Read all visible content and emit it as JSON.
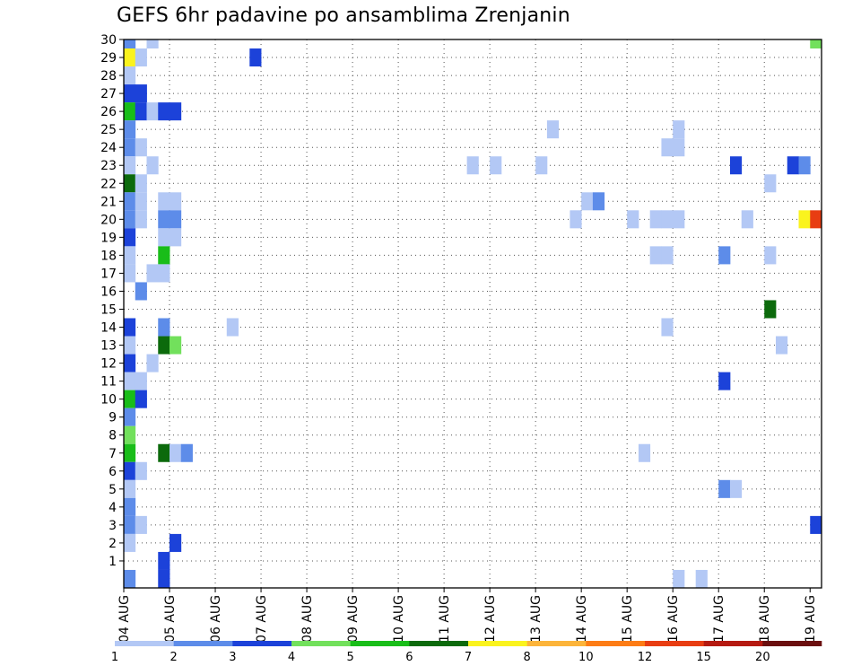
{
  "chart_data": {
    "type": "heatmap",
    "title": "GEFS 6hr padavine po ansamblima Zrenjanin",
    "x_ticks": [
      "04 AUG",
      "05 AUG",
      "06 AUG",
      "07 AUG",
      "08 AUG",
      "09 AUG",
      "10 AUG",
      "11 AUG",
      "12 AUG",
      "13 AUG",
      "14 AUG",
      "15 AUG",
      "16 AUG",
      "17 AUG",
      "18 AUG",
      "19 AUG"
    ],
    "y_ticks": [
      "1",
      "2",
      "3",
      "4",
      "5",
      "6",
      "7",
      "8",
      "9",
      "10",
      "11",
      "12",
      "13",
      "14",
      "15",
      "16",
      "17",
      "18",
      "19",
      "20",
      "21",
      "22",
      "23",
      "24",
      "25",
      "26",
      "27",
      "28",
      "29",
      "30"
    ],
    "grid": true,
    "colorbar": {
      "labels": [
        "1",
        "2",
        "3",
        "4",
        "5",
        "6",
        "7",
        "8",
        "10",
        "12",
        "15",
        "20"
      ],
      "colors": [
        "#b3c8f5",
        "#5d8ce9",
        "#1c42d9",
        "#72e05c",
        "#19bd19",
        "#0c6a0c",
        "#faf31e",
        "#fcb43a",
        "#fd7c15",
        "#e83d12",
        "#b51a11",
        "#6b0f0f"
      ]
    },
    "series": [
      {
        "member": 30,
        "cells": [
          [
            0,
            2
          ],
          [
            2,
            1
          ],
          [
            60,
            4
          ]
        ]
      },
      {
        "member": 29,
        "cells": [
          [
            0,
            7
          ],
          [
            1,
            1
          ],
          [
            11,
            3
          ]
        ]
      },
      {
        "member": 28,
        "cells": [
          [
            0,
            1
          ]
        ]
      },
      {
        "member": 27,
        "cells": [
          [
            0,
            3
          ],
          [
            1,
            3
          ]
        ]
      },
      {
        "member": 26,
        "cells": [
          [
            0,
            5
          ],
          [
            1,
            3
          ],
          [
            2,
            1
          ],
          [
            3,
            3
          ],
          [
            4,
            3
          ]
        ]
      },
      {
        "member": 25,
        "cells": [
          [
            0,
            2
          ],
          [
            37,
            1
          ],
          [
            48,
            1
          ]
        ]
      },
      {
        "member": 24,
        "cells": [
          [
            0,
            2
          ],
          [
            1,
            1
          ],
          [
            47,
            1
          ],
          [
            48,
            1
          ]
        ]
      },
      {
        "member": 23,
        "cells": [
          [
            0,
            1
          ],
          [
            2,
            1
          ],
          [
            30,
            1
          ],
          [
            32,
            1
          ],
          [
            36,
            1
          ],
          [
            53,
            3
          ],
          [
            58,
            3
          ],
          [
            59,
            2
          ]
        ]
      },
      {
        "member": 22,
        "cells": [
          [
            0,
            6
          ],
          [
            1,
            1
          ],
          [
            56,
            1
          ]
        ]
      },
      {
        "member": 21,
        "cells": [
          [
            0,
            2
          ],
          [
            1,
            1
          ],
          [
            3,
            1
          ],
          [
            4,
            1
          ],
          [
            40,
            1
          ],
          [
            41,
            2
          ]
        ]
      },
      {
        "member": 20,
        "cells": [
          [
            0,
            2
          ],
          [
            1,
            1
          ],
          [
            3,
            2
          ],
          [
            4,
            2
          ],
          [
            39,
            1
          ],
          [
            44,
            1
          ],
          [
            46,
            1
          ],
          [
            47,
            1
          ],
          [
            48,
            1
          ],
          [
            54,
            1
          ],
          [
            59,
            7
          ],
          [
            60,
            10
          ]
        ]
      },
      {
        "member": 19,
        "cells": [
          [
            0,
            3
          ],
          [
            3,
            1
          ],
          [
            4,
            1
          ]
        ]
      },
      {
        "member": 18,
        "cells": [
          [
            0,
            1
          ],
          [
            3,
            5
          ],
          [
            46,
            1
          ],
          [
            47,
            1
          ],
          [
            52,
            2
          ],
          [
            56,
            1
          ]
        ]
      },
      {
        "member": 17,
        "cells": [
          [
            0,
            1
          ],
          [
            2,
            1
          ],
          [
            3,
            1
          ]
        ]
      },
      {
        "member": 16,
        "cells": [
          [
            1,
            2
          ]
        ]
      },
      {
        "member": 15,
        "cells": [
          [
            56,
            6
          ]
        ]
      },
      {
        "member": 14,
        "cells": [
          [
            0,
            3
          ],
          [
            3,
            2
          ],
          [
            9,
            1
          ],
          [
            47,
            1
          ]
        ]
      },
      {
        "member": 13,
        "cells": [
          [
            0,
            1
          ],
          [
            3,
            6
          ],
          [
            4,
            4
          ],
          [
            57,
            1
          ]
        ]
      },
      {
        "member": 12,
        "cells": [
          [
            0,
            3
          ],
          [
            2,
            1
          ]
        ]
      },
      {
        "member": 11,
        "cells": [
          [
            0,
            1
          ],
          [
            1,
            1
          ],
          [
            52,
            3
          ]
        ]
      },
      {
        "member": 10,
        "cells": [
          [
            0,
            5
          ],
          [
            1,
            3
          ]
        ]
      },
      {
        "member": 9,
        "cells": [
          [
            0,
            2
          ]
        ]
      },
      {
        "member": 8,
        "cells": [
          [
            0,
            4
          ]
        ]
      },
      {
        "member": 7,
        "cells": [
          [
            0,
            5
          ],
          [
            3,
            6
          ],
          [
            4,
            1
          ],
          [
            5,
            2
          ],
          [
            45,
            1
          ]
        ]
      },
      {
        "member": 6,
        "cells": [
          [
            0,
            3
          ],
          [
            1,
            1
          ]
        ]
      },
      {
        "member": 5,
        "cells": [
          [
            0,
            1
          ],
          [
            52,
            2
          ],
          [
            53,
            1
          ]
        ]
      },
      {
        "member": 4,
        "cells": [
          [
            0,
            2
          ]
        ]
      },
      {
        "member": 3,
        "cells": [
          [
            0,
            2
          ],
          [
            1,
            1
          ],
          [
            60,
            3
          ]
        ]
      },
      {
        "member": 2,
        "cells": [
          [
            0,
            1
          ],
          [
            4,
            3
          ]
        ]
      },
      {
        "member": 1,
        "cells": [
          [
            3,
            3
          ]
        ]
      },
      {
        "member": 0,
        "cells": [
          [
            0,
            2
          ],
          [
            3,
            3
          ],
          [
            48,
            1
          ],
          [
            50,
            1
          ]
        ]
      }
    ]
  }
}
